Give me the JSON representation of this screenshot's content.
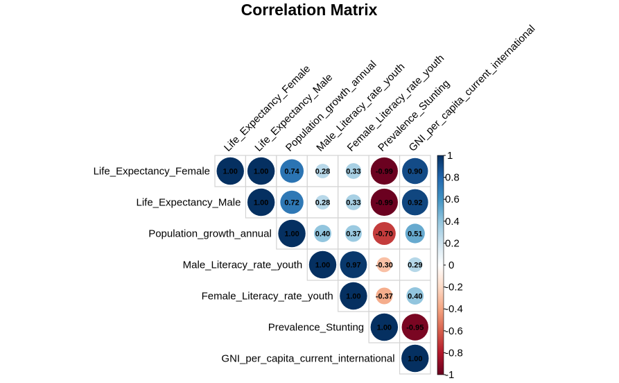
{
  "chart_data": {
    "type": "heatmap",
    "subtype": "corrplot-circle-upper",
    "title": "Correlation Matrix",
    "variables": [
      "Life_Expectancy_Female",
      "Life_Expectancy_Male",
      "Population_growth_annual",
      "Male_Literacy_rate_youth",
      "Female_Literacy_rate_youth",
      "Prevalence_Stunting",
      "GNI_per_capita_current_international"
    ],
    "matrix": [
      [
        1.0,
        1.0,
        0.74,
        0.28,
        0.33,
        -0.99,
        0.9
      ],
      [
        null,
        1.0,
        0.72,
        0.28,
        0.33,
        -0.99,
        0.92
      ],
      [
        null,
        null,
        1.0,
        0.4,
        0.37,
        -0.7,
        0.51
      ],
      [
        null,
        null,
        null,
        1.0,
        0.97,
        -0.3,
        0.29
      ],
      [
        null,
        null,
        null,
        null,
        1.0,
        -0.37,
        0.4
      ],
      [
        null,
        null,
        null,
        null,
        null,
        1.0,
        -0.95
      ],
      [
        null,
        null,
        null,
        null,
        null,
        null,
        1.0
      ]
    ],
    "value_labels": [
      [
        "1.00",
        "1.00",
        "0.74",
        "0.28",
        "0.33",
        "-0.99",
        "0.90"
      ],
      [
        null,
        "1.00",
        "0.72",
        "0.28",
        "0.33",
        "-0.99",
        "0.92"
      ],
      [
        null,
        null,
        "1.00",
        "0.40",
        "0.37",
        "-0.70",
        "0.51"
      ],
      [
        null,
        null,
        null,
        "1.00",
        "0.97",
        "-0.30",
        "0.29"
      ],
      [
        null,
        null,
        null,
        null,
        "1.00",
        "-0.37",
        "0.40"
      ],
      [
        null,
        null,
        null,
        null,
        null,
        "1.00",
        "-0.95"
      ],
      [
        null,
        null,
        null,
        null,
        null,
        null,
        "1.00"
      ]
    ],
    "legend": {
      "placement": "right",
      "range": [
        -1,
        1
      ],
      "ticks": [
        1,
        0.8,
        0.6,
        0.4,
        0.2,
        0,
        -0.2,
        -0.4,
        -0.6,
        -0.8,
        -1
      ],
      "tick_labels": [
        "1",
        "0.8",
        "0.6",
        "0.4",
        "0.2",
        "0",
        "-0.2",
        "-0.4",
        "-0.6",
        "-0.8",
        "-1"
      ]
    },
    "palette": {
      "name": "RdBu",
      "stops": [
        "#67001F",
        "#B2182B",
        "#D6604D",
        "#F4A582",
        "#FDDBC7",
        "#FFFFFF",
        "#D1E5F0",
        "#92C5DE",
        "#4393C3",
        "#2166AC",
        "#053061"
      ]
    },
    "grid_color": "#d3d3d3",
    "grid": true
  }
}
